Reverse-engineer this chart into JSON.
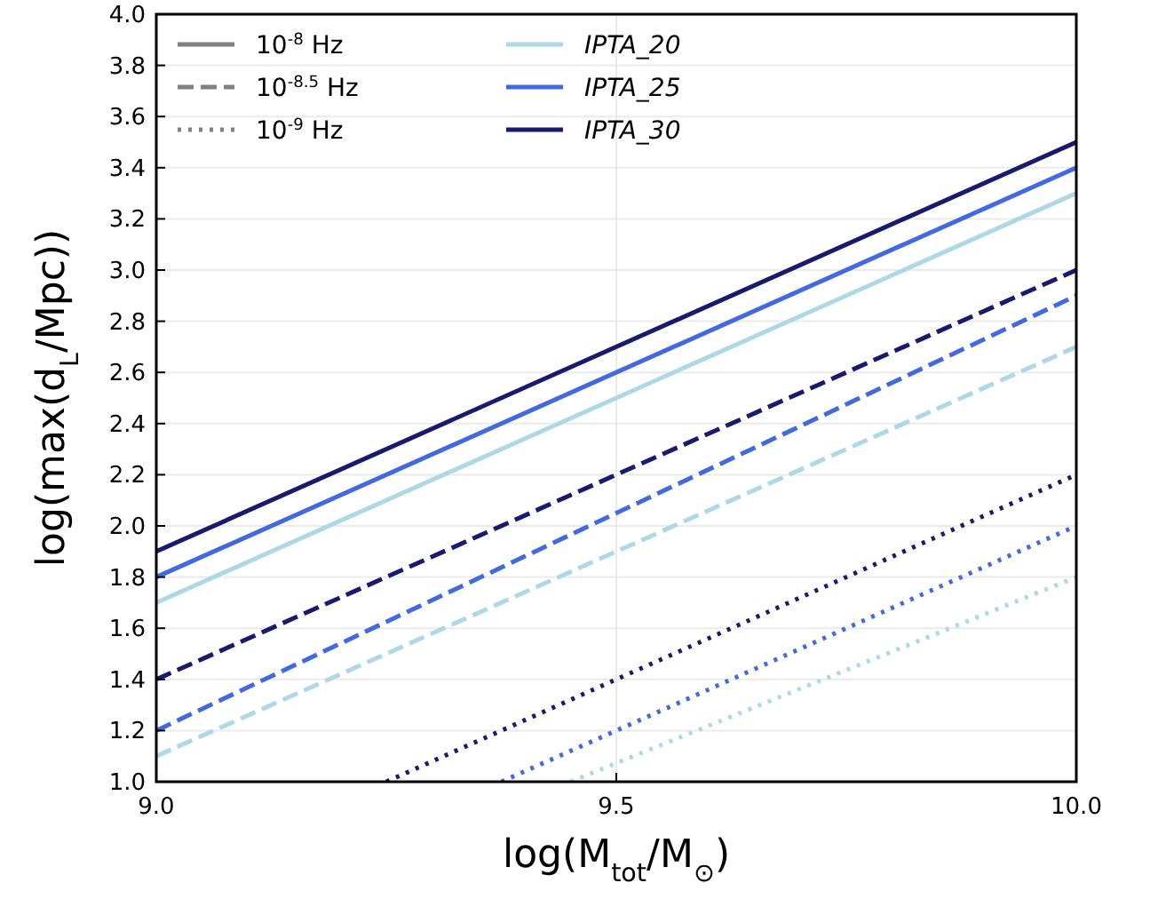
{
  "chart_data": {
    "type": "line",
    "xlabel": "log(M$_{tot}$/M$_{⊙}$)",
    "ylabel": "log(max(d$_{L}$/Mpc))",
    "xlim": [
      9.0,
      10.0
    ],
    "xticks": [
      {
        "value": 9.0,
        "label": "9.0"
      },
      9.5,
      {
        "value": 10.0,
        "label": "10.0"
      }
    ],
    "ylim": [
      1.0,
      4.0
    ],
    "yticks": [
      {
        "value": 1.0,
        "label": "1.0"
      },
      1.2,
      1.4,
      1.6,
      1.8,
      {
        "value": 2.0,
        "label": "2.0"
      },
      2.2,
      2.4,
      2.6,
      2.8,
      {
        "value": 3.0,
        "label": "3.0"
      },
      3.2,
      3.4,
      3.6,
      3.8,
      {
        "value": 4.0,
        "label": "4.0"
      }
    ],
    "grid": true,
    "legend": "top left",
    "series": [
      {
        "name": "10$^{-8}$ Hz",
        "color": "#808080",
        "line_style": "solid"
      },
      {
        "name": "10$^{-8.5}$ Hz",
        "color": "#808080",
        "line_style": "dashed"
      },
      {
        "name": "10$^{-9}$ Hz",
        "color": "#808080",
        "line_style": "dotted"
      },
      {
        "name": "IPTA_20",
        "color": "#add8e6",
        "line_style": "solid",
        "x": [
          9.0,
          10.0
        ],
        "values": [
          1.7,
          3.3
        ]
      },
      {
        "name": "IPTA_25",
        "color": "#4169e1",
        "line_style": "solid",
        "x": [
          9.0,
          10.0
        ],
        "values": [
          1.8,
          3.4
        ]
      },
      {
        "name": "IPTA_30",
        "color": "#191970",
        "line_style": "solid",
        "x": [
          9.0,
          10.0
        ],
        "values": [
          1.9,
          3.5
        ]
      },
      {
        "color": "#add8e6",
        "line_style": "dashed",
        "x": [
          9.0,
          10.0
        ],
        "values": [
          1.1,
          2.7
        ]
      },
      {
        "color": "#4169e1",
        "line_style": "dashed",
        "x": [
          9.0,
          10.0
        ],
        "values": [
          1.2,
          2.9
        ]
      },
      {
        "color": "#191970",
        "line_style": "dashed",
        "x": [
          9.0,
          10.0
        ],
        "values": [
          1.4,
          3.0
        ]
      },
      {
        "color": "#add8e6",
        "line_style": "dotted",
        "x": [
          9.45,
          10.0
        ],
        "values": [
          1.0,
          1.8
        ]
      },
      {
        "color": "#4169e1",
        "line_style": "dotted",
        "x": [
          9.375,
          10.0
        ],
        "values": [
          1.0,
          2.0
        ]
      },
      {
        "color": "#191970",
        "line_style": "dotted",
        "x": [
          9.25,
          10.0
        ],
        "values": [
          1.0,
          2.2
        ]
      }
    ]
  }
}
